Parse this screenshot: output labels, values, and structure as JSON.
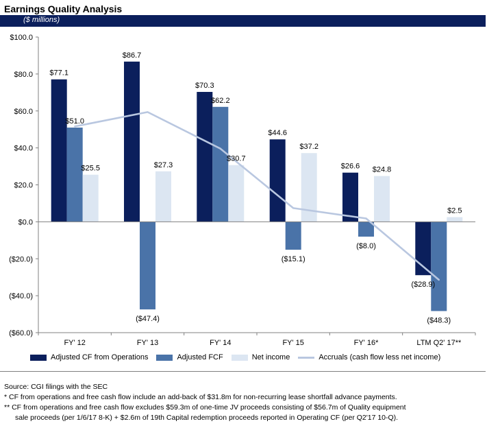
{
  "header": {
    "title": "Earnings Quality Analysis",
    "units": "($ millions)"
  },
  "colors": {
    "header_bar": "#0b1f5c",
    "adjusted_cf": "#0b1f5c",
    "adjusted_fcf": "#4a73a8",
    "net_income": "#dce6f2",
    "accruals": "#b9c7e0"
  },
  "chart_data": {
    "type": "bar",
    "title": "Earnings Quality Analysis",
    "ylabel": "$ millions",
    "xlabel": "",
    "ylim": [
      -60,
      100
    ],
    "yticks": [
      100,
      80,
      60,
      40,
      20,
      0,
      -20,
      -40,
      -60
    ],
    "ytick_labels": [
      "$100.0",
      "$80.0",
      "$60.0",
      "$40.0",
      "$20.0",
      "$0.0",
      "($20.0)",
      "($40.0)",
      "($60.0)"
    ],
    "categories": [
      "FY' 12",
      "FY' 13",
      "FY' 14",
      "FY' 15",
      "FY' 16*",
      "LTM Q2' 17**"
    ],
    "series": [
      {
        "name": "Adjusted CF from Operations",
        "kind": "bar",
        "values": [
          77.1,
          86.7,
          70.3,
          44.6,
          26.6,
          -28.9
        ],
        "labels": [
          "$77.1",
          "$86.7",
          "$70.3",
          "$44.6",
          "$26.6",
          "($28.9)"
        ]
      },
      {
        "name": "Adjusted FCF",
        "kind": "bar",
        "values": [
          51.0,
          -47.4,
          62.2,
          -15.1,
          -8.0,
          -48.3
        ],
        "labels": [
          "$51.0",
          "($47.4)",
          "$62.2",
          "($15.1)",
          "($8.0)",
          "($48.3)"
        ]
      },
      {
        "name": "Net income",
        "kind": "bar",
        "values": [
          25.5,
          27.3,
          30.7,
          37.2,
          24.8,
          2.5
        ],
        "labels": [
          "$25.5",
          "$27.3",
          "$30.7",
          "$37.2",
          "$24.8",
          "$2.5"
        ]
      },
      {
        "name": "Accruals (cash flow less net income)",
        "kind": "line",
        "values": [
          51.6,
          59.4,
          39.6,
          7.4,
          1.8,
          -31.4
        ]
      }
    ],
    "legend_position": "bottom",
    "grid": false
  },
  "footnotes": {
    "source": "Source: CGI filings with the SEC",
    "note1": "*  CF from operations and free cash flow include an add-back of $31.8m for non-recurring lease shortfall advance payments.",
    "note2_line1": "** CF from operations and free cash flow excludes $59.3m of one-time JV proceeds consisting of $56.7m of Quality equipment",
    "note2_line2": "sale proceeds (per 1/6/17 8-K) + $2.6m of 19th Capital redemption proceeds reported in Operating CF (per Q2'17 10-Q)."
  }
}
